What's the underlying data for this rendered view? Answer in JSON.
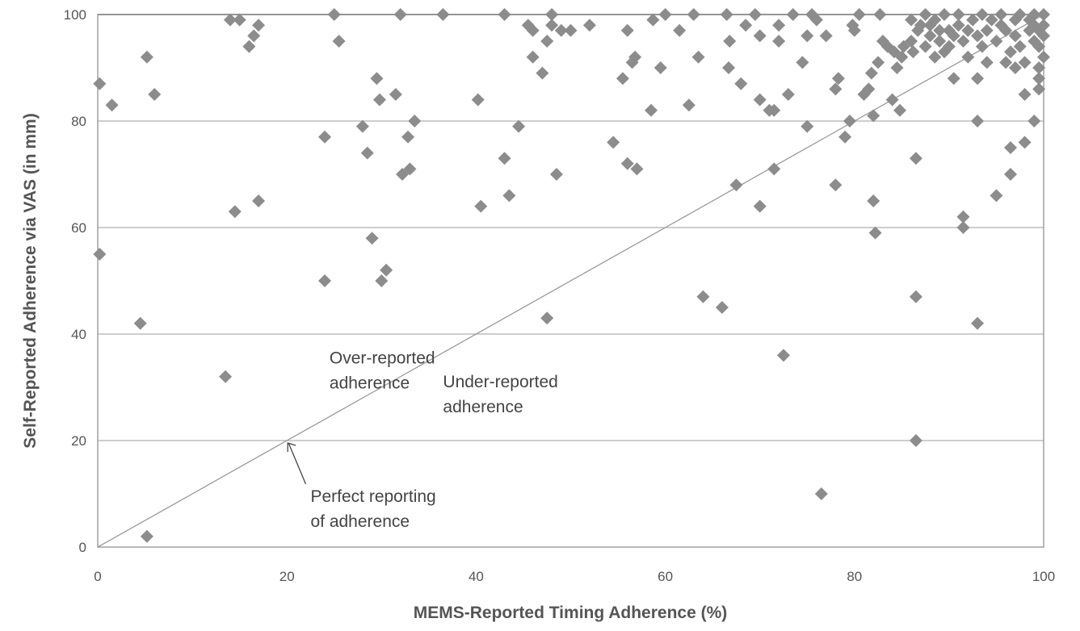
{
  "chart_data": {
    "type": "scatter",
    "xlabel": "MEMS-Reported Timing Adherence (%)",
    "ylabel": "Self-Reported Adherence via VAS (in mm)",
    "xlim": [
      0,
      100
    ],
    "ylim": [
      0,
      100
    ],
    "xticks": [
      0,
      20,
      40,
      60,
      80,
      100
    ],
    "yticks": [
      0,
      20,
      40,
      60,
      80,
      100
    ],
    "grid": "horizontal",
    "marker": "diamond",
    "marker_color": "#8c8c8c",
    "gridline_color": "#b0b0b0",
    "reference_line": {
      "from": [
        0,
        0
      ],
      "to": [
        100,
        100
      ],
      "color": "#9a9a9a"
    },
    "annotations": [
      {
        "lines": [
          "Over-reported",
          "adherence"
        ],
        "x": 24.5,
        "y": 34.5
      },
      {
        "lines": [
          "Under-reported",
          "adherence"
        ],
        "x": 36.5,
        "y": 30
      },
      {
        "lines": [
          "Perfect reporting",
          "of adherence"
        ],
        "x": 22.5,
        "y": 8.5,
        "arrow_to": [
          20,
          20
        ]
      }
    ],
    "points": [
      [
        0.2,
        87
      ],
      [
        0.2,
        55
      ],
      [
        1.5,
        83
      ],
      [
        4.5,
        42
      ],
      [
        5.2,
        92
      ],
      [
        5.2,
        2
      ],
      [
        6,
        85
      ],
      [
        13.5,
        32
      ],
      [
        14,
        99
      ],
      [
        14.5,
        63
      ],
      [
        15,
        99
      ],
      [
        16,
        94
      ],
      [
        16.5,
        96
      ],
      [
        17,
        98
      ],
      [
        17,
        65
      ],
      [
        24,
        77
      ],
      [
        24,
        50
      ],
      [
        25,
        100
      ],
      [
        25.5,
        95
      ],
      [
        28,
        79
      ],
      [
        28.5,
        74
      ],
      [
        29,
        58
      ],
      [
        29.5,
        88
      ],
      [
        29.8,
        84
      ],
      [
        30,
        50
      ],
      [
        30.5,
        52
      ],
      [
        31.5,
        85
      ],
      [
        32,
        100
      ],
      [
        32.2,
        70
      ],
      [
        32.8,
        77
      ],
      [
        33,
        71
      ],
      [
        33.5,
        80
      ],
      [
        36.5,
        100
      ],
      [
        40.2,
        84
      ],
      [
        40.5,
        64
      ],
      [
        43,
        100
      ],
      [
        43,
        73
      ],
      [
        43.5,
        66
      ],
      [
        44.5,
        79
      ],
      [
        45.5,
        98
      ],
      [
        46,
        97
      ],
      [
        46,
        92
      ],
      [
        47,
        89
      ],
      [
        47.5,
        43
      ],
      [
        47.5,
        95
      ],
      [
        48,
        98
      ],
      [
        48,
        100
      ],
      [
        48.5,
        70
      ],
      [
        49,
        97
      ],
      [
        50,
        97
      ],
      [
        52,
        98
      ],
      [
        54.5,
        76
      ],
      [
        55.5,
        88
      ],
      [
        56,
        97
      ],
      [
        56,
        72
      ],
      [
        56.5,
        91
      ],
      [
        56.8,
        92
      ],
      [
        57,
        71
      ],
      [
        58.5,
        82
      ],
      [
        58.7,
        99
      ],
      [
        59.5,
        90
      ],
      [
        60,
        100
      ],
      [
        61.5,
        97
      ],
      [
        62.5,
        83
      ],
      [
        63,
        100
      ],
      [
        63.5,
        92
      ],
      [
        64,
        47
      ],
      [
        66,
        45
      ],
      [
        66.5,
        100
      ],
      [
        66.7,
        90
      ],
      [
        66.8,
        95
      ],
      [
        67.5,
        68
      ],
      [
        68,
        87
      ],
      [
        68.5,
        98
      ],
      [
        69.5,
        100
      ],
      [
        70,
        64
      ],
      [
        70,
        96
      ],
      [
        70,
        84
      ],
      [
        71,
        82
      ],
      [
        71.5,
        82
      ],
      [
        71.5,
        71
      ],
      [
        72,
        95
      ],
      [
        72,
        98
      ],
      [
        72.5,
        36
      ],
      [
        73,
        85
      ],
      [
        73.5,
        100
      ],
      [
        74.5,
        91
      ],
      [
        75,
        79
      ],
      [
        75,
        96
      ],
      [
        75.5,
        100
      ],
      [
        76,
        99
      ],
      [
        76.5,
        10
      ],
      [
        77,
        96
      ],
      [
        78,
        68
      ],
      [
        78,
        86
      ],
      [
        78.3,
        88
      ],
      [
        79,
        77
      ],
      [
        79.5,
        80
      ],
      [
        79.8,
        98
      ],
      [
        80,
        97
      ],
      [
        80.5,
        100
      ],
      [
        81,
        85
      ],
      [
        81.5,
        86
      ],
      [
        81.8,
        89
      ],
      [
        82,
        81
      ],
      [
        82,
        65
      ],
      [
        82.2,
        59
      ],
      [
        82.5,
        91
      ],
      [
        82.7,
        100
      ],
      [
        83,
        95
      ],
      [
        83.5,
        94
      ],
      [
        84,
        84
      ],
      [
        84.2,
        93
      ],
      [
        84.5,
        90
      ],
      [
        84.8,
        82
      ],
      [
        85,
        92
      ],
      [
        85.2,
        94
      ],
      [
        86,
        99
      ],
      [
        86,
        95
      ],
      [
        86.2,
        93
      ],
      [
        86.5,
        73
      ],
      [
        86.5,
        47
      ],
      [
        86.5,
        20
      ],
      [
        86.7,
        97
      ],
      [
        87,
        98
      ],
      [
        87.5,
        100
      ],
      [
        87.5,
        94
      ],
      [
        88,
        96
      ],
      [
        88,
        98
      ],
      [
        88.5,
        99
      ],
      [
        88.5,
        92
      ],
      [
        89,
        95
      ],
      [
        89,
        97
      ],
      [
        89.5,
        100
      ],
      [
        89.5,
        93
      ],
      [
        90,
        94
      ],
      [
        90,
        97
      ],
      [
        90.5,
        88
      ],
      [
        90.5,
        96
      ],
      [
        91,
        98
      ],
      [
        91,
        100
      ],
      [
        91.5,
        95
      ],
      [
        91.5,
        62
      ],
      [
        91.5,
        60
      ],
      [
        92,
        92
      ],
      [
        92,
        97
      ],
      [
        92.5,
        99
      ],
      [
        93,
        96
      ],
      [
        93,
        88
      ],
      [
        93,
        80
      ],
      [
        93,
        42
      ],
      [
        93.5,
        100
      ],
      [
        93.5,
        94
      ],
      [
        94,
        97
      ],
      [
        94,
        91
      ],
      [
        94.5,
        99
      ],
      [
        95,
        95
      ],
      [
        95,
        66
      ],
      [
        95.5,
        98
      ],
      [
        95.5,
        100
      ],
      [
        96,
        97
      ],
      [
        96,
        91
      ],
      [
        96.5,
        93
      ],
      [
        96.5,
        75
      ],
      [
        96.5,
        70
      ],
      [
        97,
        99
      ],
      [
        97,
        96
      ],
      [
        97,
        90
      ],
      [
        97.5,
        100
      ],
      [
        97.5,
        94
      ],
      [
        98,
        91
      ],
      [
        98,
        85
      ],
      [
        98,
        76
      ],
      [
        98.5,
        97
      ],
      [
        98.5,
        99
      ],
      [
        99,
        100
      ],
      [
        99,
        98
      ],
      [
        99,
        95
      ],
      [
        99,
        80
      ],
      [
        99.5,
        94
      ],
      [
        99.5,
        97
      ],
      [
        99.5,
        86
      ],
      [
        99.5,
        88
      ],
      [
        99.5,
        90
      ],
      [
        100,
        96
      ],
      [
        100,
        100
      ],
      [
        100,
        98
      ],
      [
        100,
        92
      ]
    ]
  }
}
